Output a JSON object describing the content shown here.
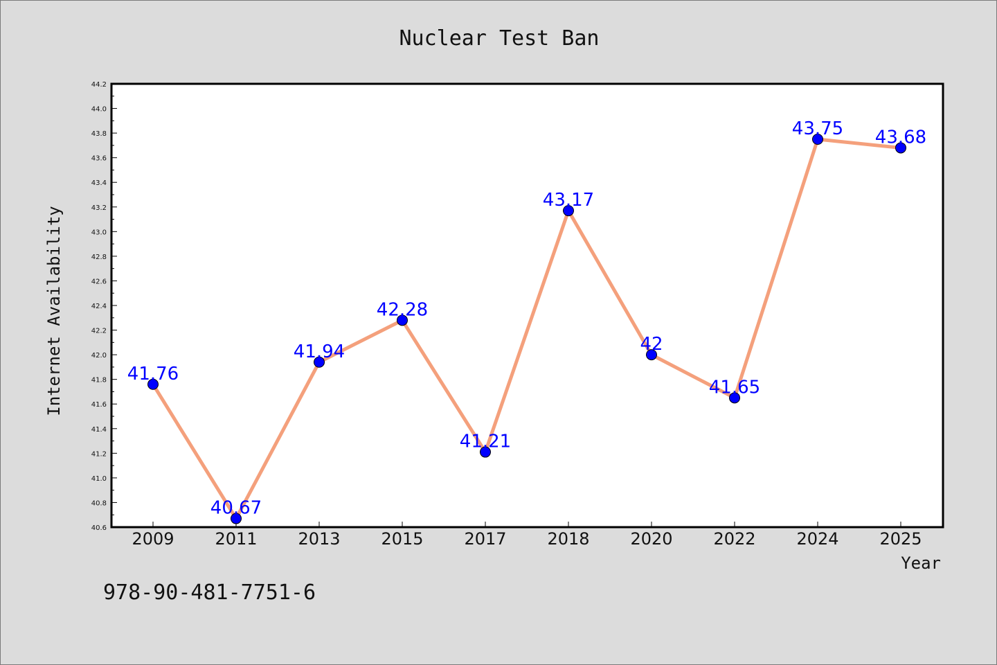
{
  "chart_data": {
    "type": "line",
    "title": "Nuclear Test Ban",
    "xlabel": "Year",
    "ylabel": "Internet Availability",
    "categories": [
      "2009",
      "2011",
      "2013",
      "2015",
      "2017",
      "2018",
      "2020",
      "2022",
      "2024",
      "2025"
    ],
    "values": [
      41.76,
      40.67,
      41.94,
      42.28,
      41.21,
      43.17,
      42,
      41.65,
      43.75,
      43.68
    ],
    "data_labels": [
      "41.76",
      "40.67",
      "41.94",
      "42.28",
      "41.21",
      "43.17",
      "42",
      "41.65",
      "43.75",
      "43.68"
    ],
    "ylim": [
      40.6,
      44.2
    ],
    "y_ticks": [
      "40.6",
      "40.8",
      "41.0",
      "41.2",
      "41.4",
      "41.6",
      "41.8",
      "42.0",
      "42.2",
      "42.4",
      "42.6",
      "42.8",
      "43.0",
      "43.2",
      "43.4",
      "43.6",
      "43.8",
      "44.0",
      "44.2"
    ],
    "grid": false,
    "legend": "none",
    "colors": {
      "line": "#f4a07c",
      "marker": "#0000ff",
      "label": "#0000ff",
      "background": "#dcdcdc",
      "plot_area": "#ffffff"
    }
  },
  "footer": {
    "isbn": "978-90-481-7751-6"
  }
}
